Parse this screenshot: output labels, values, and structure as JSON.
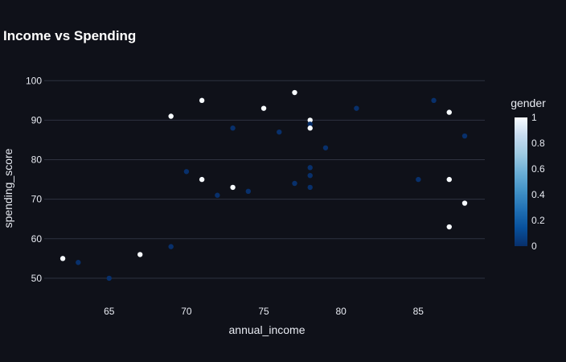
{
  "chart_data": {
    "type": "scatter",
    "title": "Income vs Spending",
    "xlabel": "annual_income",
    "ylabel": "spending_score",
    "xlim": [
      60.8,
      89.3
    ],
    "ylim": [
      45.5,
      102.5
    ],
    "xticks": [
      65,
      70,
      75,
      80,
      85
    ],
    "yticks": [
      50,
      60,
      70,
      80,
      90,
      100
    ],
    "grid": "horizontal",
    "colorbar": {
      "title": "gender",
      "range": [
        0,
        1
      ],
      "ticks": [
        0,
        0.2,
        0.4,
        0.6,
        0.8,
        1
      ],
      "tick_labels": [
        "0",
        "0.2",
        "0.4",
        "0.6",
        "0.8",
        "1"
      ],
      "colorscale": [
        "#08306b",
        "#08519c",
        "#2171b5",
        "#4292c6",
        "#6baed6",
        "#9ecae1",
        "#c6dbef",
        "#f7fbff"
      ]
    },
    "points": [
      {
        "x": 62,
        "y": 55,
        "gender": 1
      },
      {
        "x": 63,
        "y": 54,
        "gender": 0
      },
      {
        "x": 65,
        "y": 50,
        "gender": 0
      },
      {
        "x": 67,
        "y": 56,
        "gender": 1
      },
      {
        "x": 69,
        "y": 58,
        "gender": 0
      },
      {
        "x": 69,
        "y": 91,
        "gender": 1
      },
      {
        "x": 70,
        "y": 77,
        "gender": 0
      },
      {
        "x": 71,
        "y": 95,
        "gender": 1
      },
      {
        "x": 71,
        "y": 75,
        "gender": 1
      },
      {
        "x": 72,
        "y": 71,
        "gender": 0
      },
      {
        "x": 73,
        "y": 88,
        "gender": 0
      },
      {
        "x": 73,
        "y": 73,
        "gender": 1
      },
      {
        "x": 74,
        "y": 72,
        "gender": 0
      },
      {
        "x": 75,
        "y": 93,
        "gender": 1
      },
      {
        "x": 76,
        "y": 87,
        "gender": 0
      },
      {
        "x": 77,
        "y": 97,
        "gender": 1
      },
      {
        "x": 77,
        "y": 74,
        "gender": 0
      },
      {
        "x": 78,
        "y": 90,
        "gender": 1
      },
      {
        "x": 78,
        "y": 89,
        "gender": 0
      },
      {
        "x": 78,
        "y": 88,
        "gender": 1
      },
      {
        "x": 78,
        "y": 78,
        "gender": 0
      },
      {
        "x": 78,
        "y": 76,
        "gender": 0
      },
      {
        "x": 78,
        "y": 73,
        "gender": 0
      },
      {
        "x": 79,
        "y": 83,
        "gender": 0
      },
      {
        "x": 81,
        "y": 93,
        "gender": 0
      },
      {
        "x": 85,
        "y": 75,
        "gender": 0
      },
      {
        "x": 86,
        "y": 95,
        "gender": 0
      },
      {
        "x": 87,
        "y": 92,
        "gender": 1
      },
      {
        "x": 87,
        "y": 75,
        "gender": 1
      },
      {
        "x": 87,
        "y": 63,
        "gender": 1
      },
      {
        "x": 88,
        "y": 86,
        "gender": 0
      },
      {
        "x": 88,
        "y": 69,
        "gender": 1
      }
    ]
  }
}
